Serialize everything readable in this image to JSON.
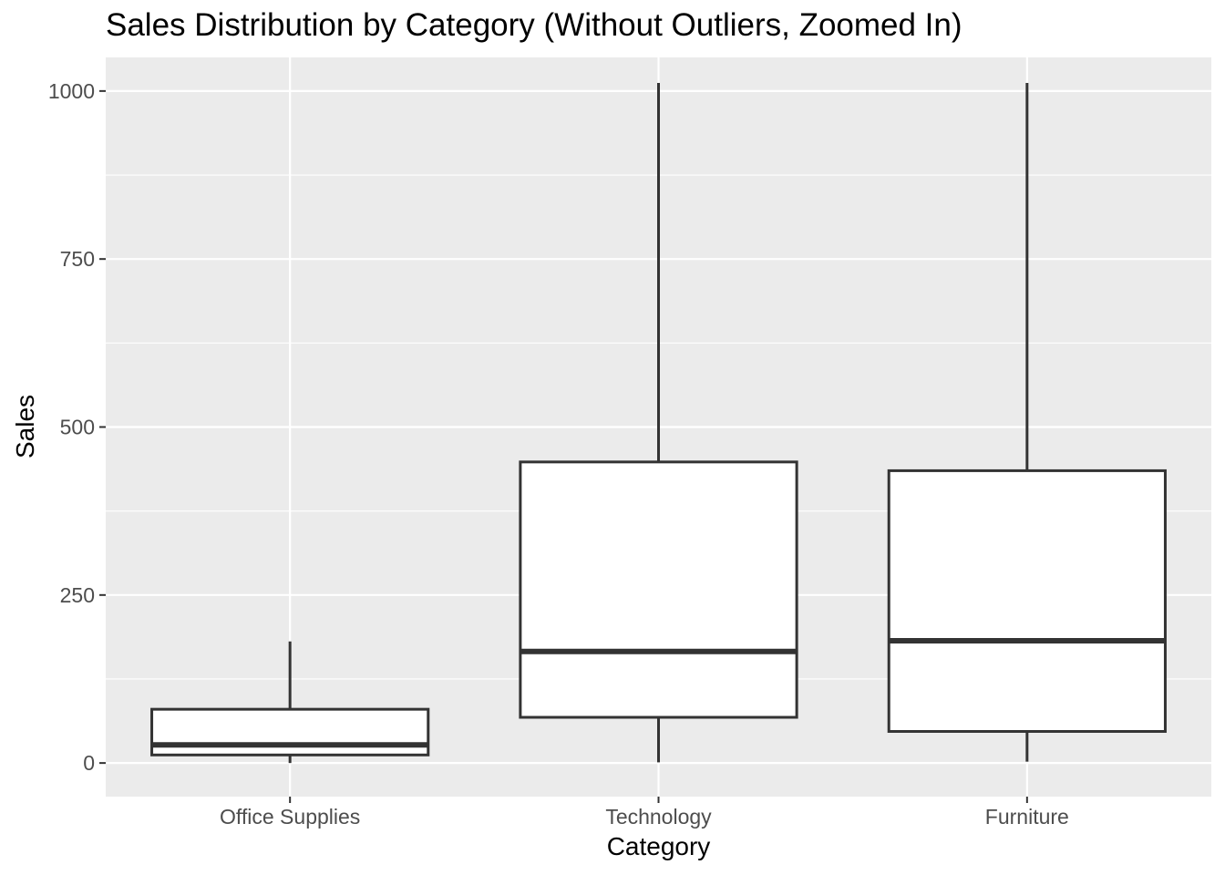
{
  "chart_data": {
    "type": "boxplot",
    "title": "Sales Distribution by Category (Without Outliers, Zoomed In)",
    "xlabel": "Category",
    "ylabel": "Sales",
    "ylim": [
      -50,
      1050
    ],
    "yticks": [
      0,
      250,
      500,
      750,
      1000
    ],
    "grid": true,
    "legend": "none",
    "colors": {
      "panel": "#ebebeb",
      "grid": "#ffffff",
      "box_fill": "#ffffff",
      "box_stroke": "#333333",
      "tick": "#333333"
    },
    "categories": [
      "Office Supplies",
      "Technology",
      "Furniture"
    ],
    "boxes": [
      {
        "category": "Office Supplies",
        "min": 0,
        "q1": 12,
        "median": 27,
        "q3": 80,
        "max": 181
      },
      {
        "category": "Technology",
        "min": 1,
        "q1": 68,
        "median": 166,
        "q3": 448,
        "max": 1012
      },
      {
        "category": "Furniture",
        "min": 2,
        "q1": 47,
        "median": 182,
        "q3": 435,
        "max": 1012
      }
    ]
  }
}
